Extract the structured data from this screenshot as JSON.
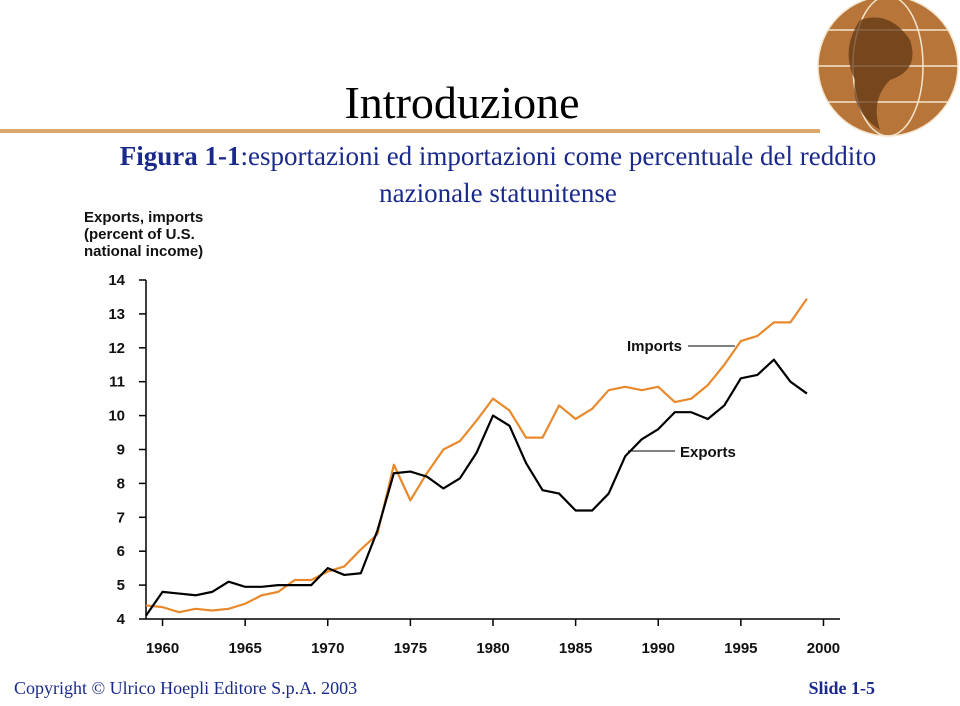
{
  "header": {
    "title": "Introduzione",
    "figure_label": "Figura 1-1",
    "caption": [
      ":esportazioni ed importazioni come percentuale del reddito",
      "nazionale statunitense"
    ]
  },
  "footer": {
    "copyright": "Copyright © Ulrico Hoepli Editore S.p.A. 2003",
    "slide": "Slide 1-5"
  },
  "chart_data": {
    "type": "line",
    "y_label": [
      "Exports, imports",
      "(percent of U.S.",
      "national income)"
    ],
    "x": [
      1959,
      1960,
      1961,
      1962,
      1963,
      1964,
      1965,
      1966,
      1967,
      1968,
      1969,
      1970,
      1971,
      1972,
      1973,
      1974,
      1975,
      1976,
      1977,
      1978,
      1979,
      1980,
      1981,
      1982,
      1983,
      1984,
      1985,
      1986,
      1987,
      1988,
      1989,
      1990,
      1991,
      1992,
      1993,
      1994,
      1995,
      1996,
      1997,
      1998,
      1999
    ],
    "series": [
      {
        "name": "Imports",
        "color": "#e8892b",
        "values": [
          4.4,
          4.35,
          4.2,
          4.3,
          4.25,
          4.3,
          4.45,
          4.7,
          4.8,
          5.15,
          5.15,
          5.4,
          5.55,
          6.05,
          6.5,
          8.55,
          7.5,
          8.3,
          9.0,
          9.25,
          9.85,
          10.5,
          10.15,
          9.35,
          9.35,
          10.3,
          9.9,
          10.2,
          10.75,
          10.85,
          10.75,
          10.85,
          10.4,
          10.5,
          10.9,
          11.5,
          12.2,
          12.35,
          12.75,
          12.75,
          13.45
        ]
      },
      {
        "name": "Exports",
        "color": "#000000",
        "values": [
          4.1,
          4.8,
          4.75,
          4.7,
          4.8,
          5.1,
          4.95,
          4.95,
          5.0,
          5.0,
          5.0,
          5.5,
          5.3,
          5.35,
          6.6,
          8.3,
          8.35,
          8.2,
          7.85,
          8.15,
          8.9,
          10.0,
          9.7,
          8.6,
          7.8,
          7.7,
          7.2,
          7.2,
          7.7,
          8.8,
          9.3,
          9.6,
          10.1,
          10.1,
          9.9,
          10.3,
          11.1,
          11.2,
          11.65,
          11.0,
          10.65
        ]
      }
    ],
    "xlim": [
      1959,
      2001
    ],
    "xticks": [
      1960,
      1965,
      1970,
      1975,
      1980,
      1985,
      1990,
      1995,
      2000
    ],
    "ylim": [
      4,
      14
    ],
    "yticks": [
      4,
      5,
      6,
      7,
      8,
      9,
      10,
      11,
      12,
      13,
      14
    ]
  }
}
